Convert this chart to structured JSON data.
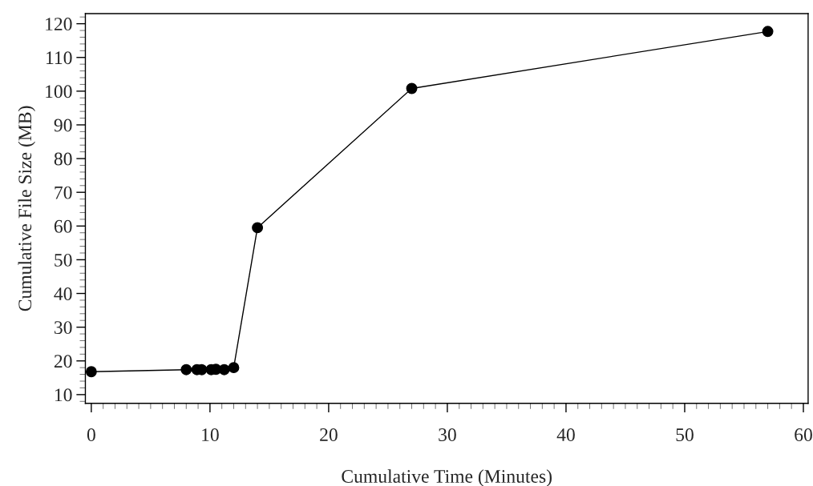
{
  "chart_data": {
    "type": "line",
    "xlabel": "Cumulative Time (Minutes)",
    "ylabel": "Cumulative File Size (MB)",
    "x": [
      0,
      8,
      8.9,
      9.3,
      10.1,
      10.5,
      11.2,
      12,
      14,
      27,
      57
    ],
    "values": [
      16.8,
      17.4,
      17.4,
      17.4,
      17.4,
      17.5,
      17.4,
      18,
      59.5,
      100.8,
      117.7
    ],
    "color": "#000000",
    "marker": "circle",
    "line_style": "solid",
    "xlim": [
      -0.5,
      60.4
    ],
    "ylim": [
      7.4,
      123
    ],
    "xticks": [
      0,
      10,
      20,
      30,
      40,
      50,
      60
    ],
    "yticks": [
      10,
      20,
      30,
      40,
      50,
      60,
      70,
      80,
      90,
      100,
      110,
      120
    ],
    "grid": false,
    "legend": false
  }
}
